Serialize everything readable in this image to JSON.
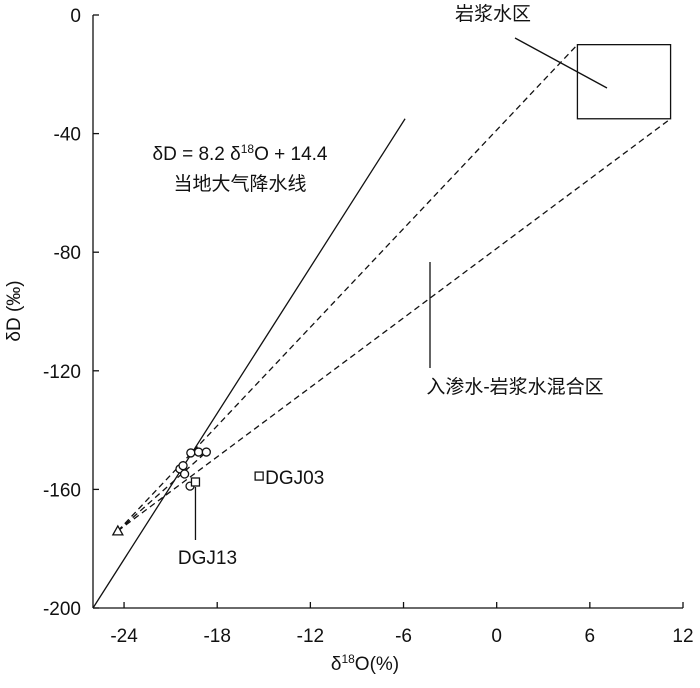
{
  "chart_data": {
    "type": "scatter",
    "x_label": [
      "δ",
      "18",
      "O(%)"
    ],
    "y_label": "δD (‰)",
    "xlim": [
      -26,
      12
    ],
    "ylim": [
      -200,
      0
    ],
    "xticks": [
      -24,
      -18,
      -12,
      -6,
      0,
      6,
      12
    ],
    "yticks": [
      0,
      -40,
      -80,
      -120,
      -160,
      -200
    ],
    "series": [
      {
        "marker": "circle",
        "x": [
          -19.7,
          -19.2,
          -18.7,
          -20.4,
          -20.1,
          -19.75,
          -20.2
        ],
        "y": [
          -147.7,
          -147.4,
          -147.4,
          -153.1,
          -154.8,
          -158.9,
          -152.0
        ]
      },
      {
        "name": "DGJ13",
        "marker": "square",
        "x": [
          -19.4
        ],
        "y": [
          -157.5
        ]
      },
      {
        "name": "DGJ03",
        "marker": "square",
        "x": [
          -15.3
        ],
        "y": [
          -155.5
        ]
      },
      {
        "marker": "triangle",
        "x": [
          -24.4
        ],
        "y": [
          -174
        ]
      }
    ],
    "meteoric_line": {
      "x": [
        -26,
        -5.9
      ],
      "y": [
        -200,
        -35
      ]
    },
    "equation": [
      "δD = 8.2 δ",
      "18",
      "O + 14.4"
    ],
    "line_label": "当地大气降水线",
    "magma_box": {
      "x": [
        5.2,
        11.2
      ],
      "y": [
        -10,
        -35
      ]
    },
    "magma_label": "岩浆水区",
    "mixing_label": "入渗水-岩浆水混合区"
  }
}
